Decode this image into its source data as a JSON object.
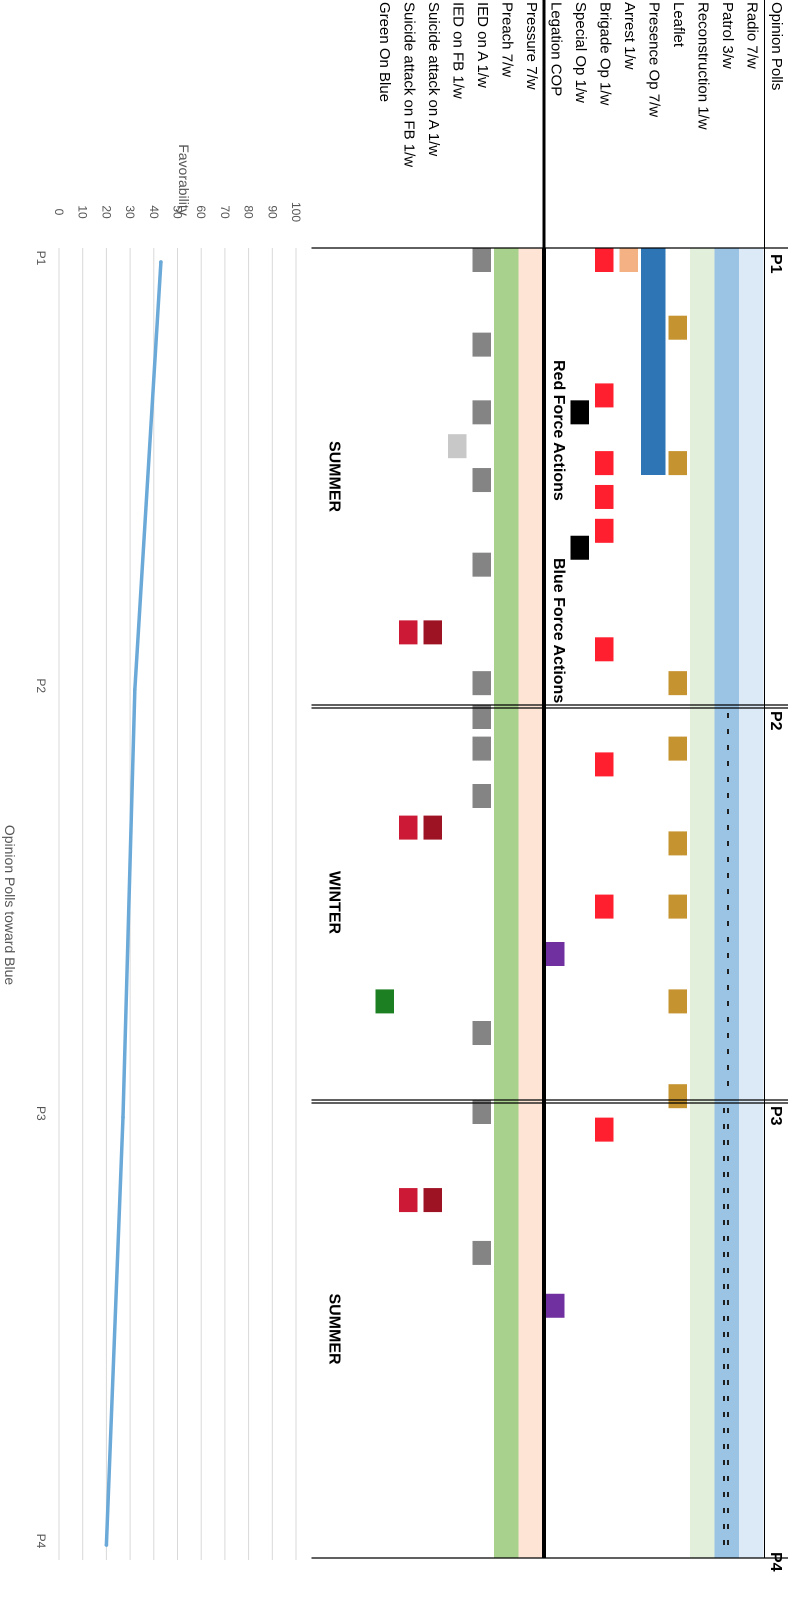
{
  "chart_data": [
    {
      "type": "table",
      "section_labels": {
        "blue": "Blue Force Actions",
        "red": "Red Force Actions"
      },
      "periods": [
        "P1",
        "P2",
        "P3",
        "P4"
      ],
      "seasons": [
        "SUMMER",
        "WINTER",
        "SUMMER"
      ],
      "rows": [
        {
          "id": "opinion",
          "label": "Opinion Polls",
          "group": "blue",
          "color": ""
        },
        {
          "id": "radio",
          "label": "Radio 7/w",
          "group": "blue",
          "color": "#dce9f6"
        },
        {
          "id": "patrol",
          "label": "Patrol 3/w",
          "group": "blue",
          "color": "#9bc3e4"
        },
        {
          "id": "recon",
          "label": "Reconstruction 1/w",
          "group": "blue",
          "color": "#e2efda"
        },
        {
          "id": "leaflet",
          "label": "Leaflet",
          "group": "blue",
          "color": "#c59330"
        },
        {
          "id": "presence",
          "label": "Presence Op 7/w",
          "group": "blue",
          "color": "#2e75b6"
        },
        {
          "id": "arrest",
          "label": "Arrest 1/w",
          "group": "blue",
          "color": "#f4b183"
        },
        {
          "id": "brigade",
          "label": "Brigade Op 1/w",
          "group": "blue",
          "color": "#ff1f2e"
        },
        {
          "id": "special",
          "label": "Special Op 1/w",
          "group": "blue",
          "color": "#000000"
        },
        {
          "id": "cop",
          "label": "Legation COP",
          "group": "blue",
          "color": "#7030a0"
        },
        {
          "id": "pressure",
          "label": "Pressure 7/w",
          "group": "red",
          "color": "#fde4d4"
        },
        {
          "id": "preach",
          "label": "Preach 7/w",
          "group": "red",
          "color": "#a9d18e"
        },
        {
          "id": "ied_a",
          "label": "IED on A 1/w",
          "group": "red",
          "color": "#848484"
        },
        {
          "id": "ied_fb",
          "label": "IED on FB 1/w",
          "group": "red",
          "color": "#c8c8c8"
        },
        {
          "id": "sa_a",
          "label": "Suicide attack on A 1/w",
          "group": "red",
          "color": "#9e1324"
        },
        {
          "id": "sa_fb",
          "label": "Suicide attack on FB 1/w",
          "group": "red",
          "color": "#cc1a36"
        },
        {
          "id": "gob",
          "label": "Green On Blue",
          "group": "red",
          "color": "#1c7f22"
        }
      ],
      "continuous_rows": [
        "radio",
        "patrol",
        "recon",
        "pressure",
        "preach"
      ],
      "patrol_dash_periods": [
        2,
        3
      ],
      "bars": [
        {
          "row": "presence",
          "start": 0.0,
          "end": 0.5
        }
      ],
      "events": {
        "arrest": [
          0.0
        ],
        "leaflet": [
          2.0,
          6.0,
          12.5,
          14.5,
          17.5,
          19.5,
          22.5,
          25.5
        ],
        "brigade": [
          0.0,
          4.0,
          6.0,
          7.0,
          8.0,
          11.5,
          15.0,
          19.5,
          26.5
        ],
        "special": [
          4.5,
          8.5
        ],
        "cop": [
          21.0,
          31.5
        ],
        "ied_a": [
          0.0,
          2.5,
          4.5,
          6.5,
          9.0,
          13.5,
          12.5,
          14.5,
          16.0,
          23.5,
          26.0,
          30.0
        ],
        "ied_fb": [
          5.5
        ],
        "sa_a": [
          11.0,
          17.0,
          28.5
        ],
        "sa_fb": [
          11.0,
          17.0,
          28.5
        ],
        "gob": [
          22.5
        ]
      },
      "weeks_per_period": [
        13.5,
        12.5,
        13.0
      ]
    },
    {
      "type": "line",
      "title": "Opinion Polls toward Blue",
      "ylabel": "Favorability",
      "ylim": [
        0,
        100
      ],
      "yticks": [
        0,
        10,
        20,
        30,
        40,
        50,
        60,
        70,
        80,
        90,
        100
      ],
      "categories": [
        "P1",
        "P2",
        "P3",
        "P4"
      ],
      "series": [
        {
          "color": "#6aa9d8",
          "values": [
            43,
            32,
            27,
            20
          ]
        }
      ]
    }
  ]
}
